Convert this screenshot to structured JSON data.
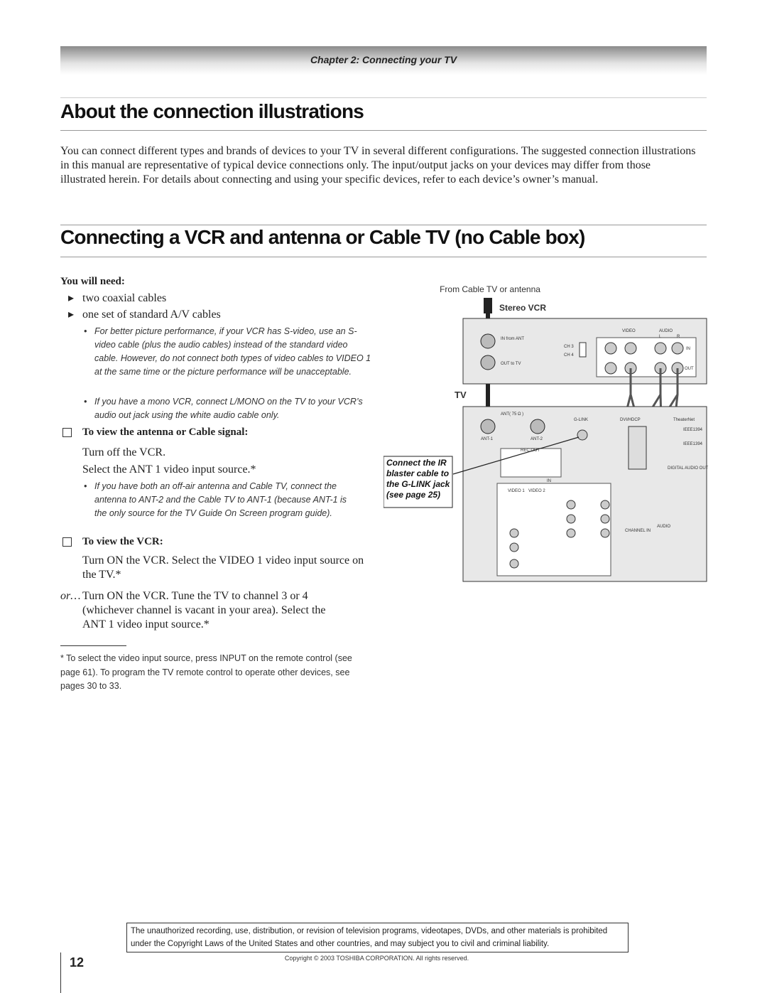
{
  "header": {
    "chapter": "Chapter 2: Connecting your TV"
  },
  "sections": [
    {
      "title": "About the connection illustrations",
      "body": "You can connect different types and brands of devices to your TV in several different configurations. The suggested connection illustrations in this manual are representative of typical device connections only. The input/output jacks on your devices may differ from those illustrated herein. For details about connecting and using your specific devices, refer to each device’s owner’s manual."
    },
    {
      "title": "Connecting a VCR and antenna or Cable TV (no Cable box)"
    }
  ],
  "needs": {
    "heading": "You will need:",
    "items": [
      "two coaxial cables",
      "one set of standard A/V cables"
    ],
    "notes": [
      "For better picture performance, if your VCR has S-video, use an S-video cable (plus the audio cables) instead of the standard video cable. However, do not connect both types of video cables to VIDEO 1 at the same time or the picture performance will be unacceptable.",
      "If you have a mono VCR, connect L/MONO on the TV to your VCR’s audio out jack using the white audio cable only."
    ]
  },
  "view_antenna": {
    "heading": "To view the antenna or Cable signal:",
    "lines": [
      "Turn off the VCR.",
      "Select the ANT 1 video input source.*"
    ],
    "note": "If you have both an off-air antenna and Cable TV, connect the antenna to ANT-2 and the Cable TV to ANT-1 (because ANT-1 is the only source for the TV Guide On Screen program guide)."
  },
  "view_vcr": {
    "heading": "To view the VCR:",
    "text": "Turn ON the VCR. Select the VIDEO 1 video input source on the TV.*",
    "or_prefix": "or…",
    "or_text": "Turn ON the VCR. Tune the TV to channel 3 or 4 (whichever channel is vacant in your area). Select the ANT 1 video input source.*"
  },
  "footnote": "* To select the video input source, press INPUT on the remote control (see page 61). To program the TV remote control to operate other devices, see pages 30 to 33.",
  "diagram": {
    "source": "From Cable TV or antenna",
    "vcr_title": "Stereo VCR",
    "tv_title": "TV",
    "callout": [
      "Connect the IR",
      "blaster cable to",
      "the G-LINK jack",
      "(see page 25)"
    ],
    "vcr_labels": {
      "video": "VIDEO",
      "audio": "AUDIO",
      "l": "L",
      "r": "R",
      "in_from_ant": "IN from ANT",
      "ch3": "CH 3",
      "ch4": "CH 4",
      "in": "IN",
      "out_to_tv": "OUT to TV",
      "out": "OUT"
    },
    "tv_labels": {
      "ant": "ANT( 75 Ω )",
      "ant1": "ANT-1",
      "ant2": "ANT-2",
      "glink": "G-LINK",
      "dvi": "DVI/HDCP",
      "theaternet": "TheaterNet",
      "rec_out": "REC OUT",
      "in": "IN",
      "video1": "VIDEO 1",
      "video2": "VIDEO 2",
      "audio": "AUDIO",
      "channel_in": "CHANNEL IN",
      "digital": "DIGITAL AUDIO OUT",
      "ieee1": "IEEE1394",
      "ieee2": "IEEE1394"
    }
  },
  "notice": "The unauthorized recording, use, distribution, or revision of television programs, videotapes, DVDs, and other materials is prohibited under the Copyright Laws of the United States and other countries, and may subject you to civil and criminal liability.",
  "page_number": "12",
  "copyright": "Copyright © 2003 TOSHIBA CORPORATION. All rights reserved."
}
